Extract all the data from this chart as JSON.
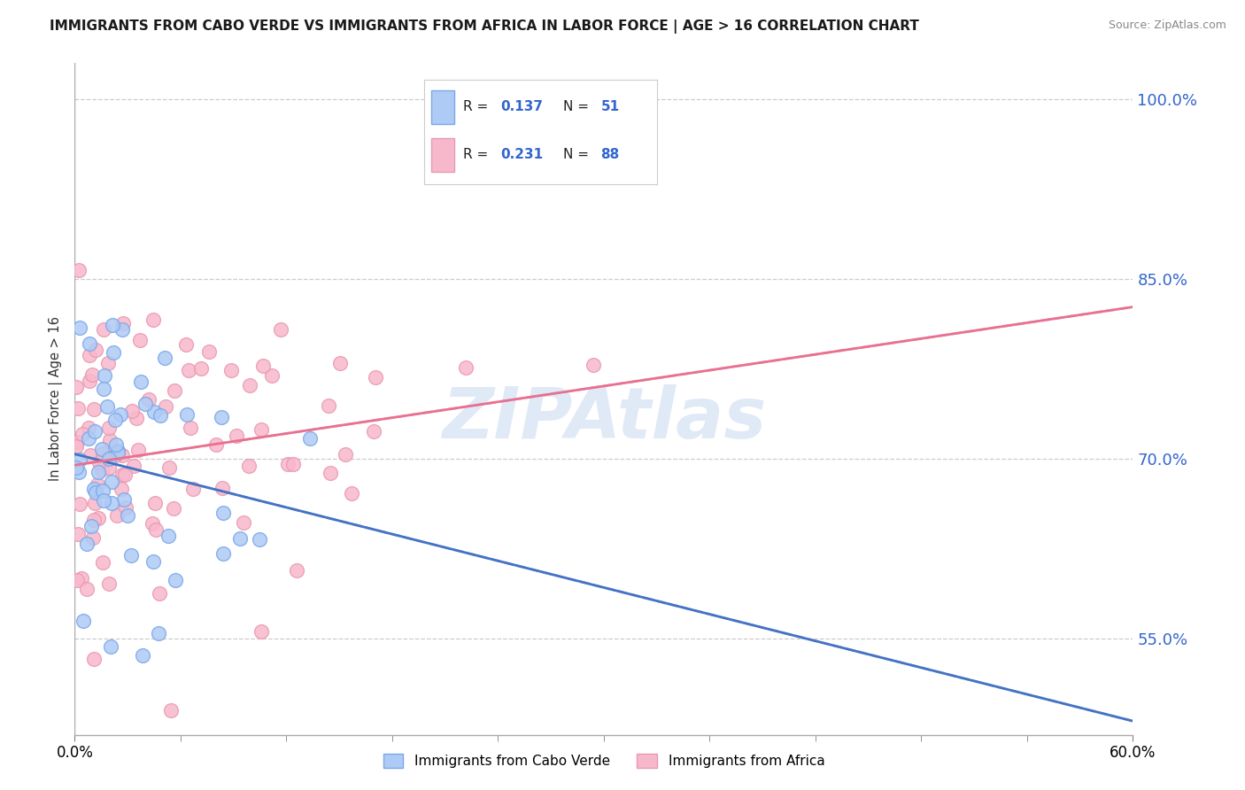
{
  "title": "IMMIGRANTS FROM CABO VERDE VS IMMIGRANTS FROM AFRICA IN LABOR FORCE | AGE > 16 CORRELATION CHART",
  "source": "Source: ZipAtlas.com",
  "ylabel": "In Labor Force | Age > 16",
  "xlim": [
    0.0,
    0.6
  ],
  "ylim": [
    0.47,
    1.03
  ],
  "yticks": [
    0.55,
    0.7,
    0.85,
    1.0
  ],
  "ytick_labels": [
    "55.0%",
    "70.0%",
    "85.0%",
    "100.0%"
  ],
  "xticks": [
    0.0,
    0.6
  ],
  "xtick_labels": [
    "0.0%",
    "60.0%"
  ],
  "xticks_minor": [
    0.06,
    0.12,
    0.18,
    0.24,
    0.3,
    0.36,
    0.42,
    0.48,
    0.54
  ],
  "cabo_verde_color": "#aecbf5",
  "africa_color": "#f8b8cb",
  "cabo_verde_edge": "#7ba7e8",
  "africa_edge": "#e89ab2",
  "cabo_verde_line_color": "#4472c4",
  "africa_line_color": "#e87090",
  "R_cabo": 0.137,
  "N_cabo": 51,
  "R_africa": 0.231,
  "N_africa": 88,
  "watermark": "ZIPAtlas",
  "watermark_color": "#c8d8f0",
  "legend_label_cabo": "Immigrants from Cabo Verde",
  "legend_label_africa": "Immigrants from Africa"
}
